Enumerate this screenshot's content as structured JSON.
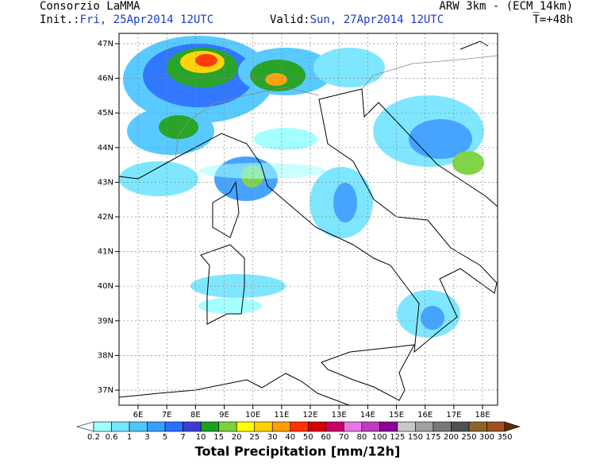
{
  "header": {
    "title": "Consorzio LaMMA",
    "model": "ARW 3km - (ECM_14km)",
    "init_label": "Init.:",
    "init": "Fri, 25Apr2014 12UTC",
    "valid_label": "Valid:",
    "valid": "Sun, 27Apr2014 12UTC",
    "lead": "T=+48h"
  },
  "map": {
    "lat_labels": [
      "47N",
      "46N",
      "45N",
      "44N",
      "43N",
      "42N",
      "41N",
      "40N",
      "39N",
      "38N",
      "37N"
    ],
    "lon_labels": [
      "6E",
      "7E",
      "8E",
      "9E",
      "10E",
      "11E",
      "12E",
      "13E",
      "14E",
      "15E",
      "16E",
      "17E",
      "18E"
    ]
  },
  "colorbar": {
    "title": "Total Precipitation [mm/12h]",
    "labels": [
      "0.2",
      "0.6",
      "1",
      "3",
      "5",
      "7",
      "10",
      "15",
      "20",
      "25",
      "30",
      "40",
      "50",
      "60",
      "70",
      "80",
      "100",
      "125",
      "150",
      "175",
      "200",
      "250",
      "300",
      "350"
    ],
    "colors": [
      "#a0ffff",
      "#78e6ff",
      "#50c8ff",
      "#3aa0ff",
      "#2870ff",
      "#3c3cd2",
      "#1ea01e",
      "#7ad23c",
      "#ffff00",
      "#ffd200",
      "#ffa000",
      "#ff3200",
      "#d20000",
      "#c80064",
      "#e678e6",
      "#be3cbe",
      "#8c0096",
      "#c8c8c8",
      "#a0a0a0",
      "#787878",
      "#505050",
      "#8c6428",
      "#a0501e"
    ],
    "low_color": "#f0ffff",
    "high_color": "#5a2d0a"
  }
}
